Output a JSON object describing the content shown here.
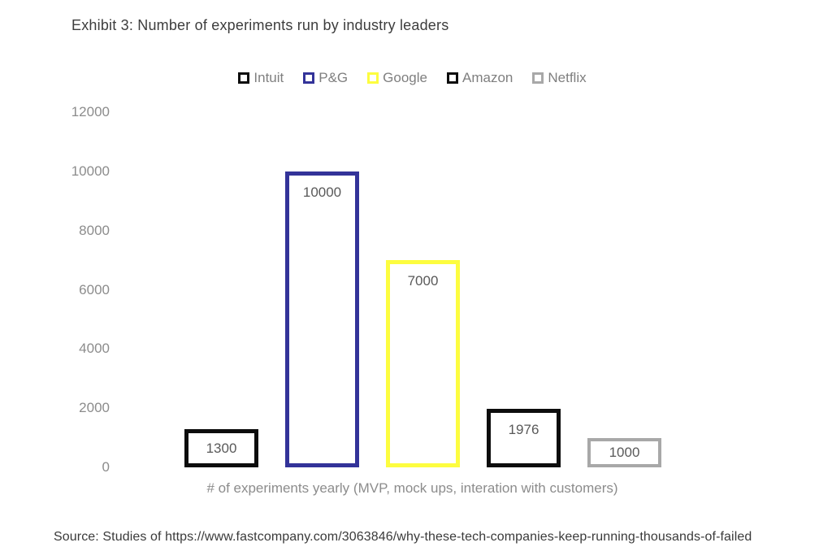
{
  "title": "Exhibit 3: Number of experiments run by industry leaders",
  "legend": {
    "items": [
      {
        "label": "Intuit",
        "color": "#0d0d0d"
      },
      {
        "label": "P&G",
        "color": "#333399"
      },
      {
        "label": "Google",
        "color": "#fdfd3f"
      },
      {
        "label": "Amazon",
        "color": "#0d0d0d"
      },
      {
        "label": "Netflix",
        "color": "#a8a8a8"
      }
    ]
  },
  "chart_data": {
    "type": "bar",
    "categories": [
      "Intuit",
      "P&G",
      "Google",
      "Amazon",
      "Netflix"
    ],
    "values": [
      1300,
      10000,
      7000,
      1976,
      1000
    ],
    "bar_colors": [
      "#0d0d0d",
      "#333399",
      "#fdfd3f",
      "#0d0d0d",
      "#a8a8a8"
    ],
    "bar_border_px": [
      5,
      5,
      5,
      5,
      4
    ],
    "bar_fill": "#ffffff",
    "data_labels": [
      "1300",
      "10000",
      "7000",
      "1976",
      "1000"
    ],
    "title": "Exhibit 3: Number of experiments run by industry leaders",
    "xlabel": "# of experiments yearly (MVP, mock ups, interation with customers)",
    "ylabel": "",
    "ylim": [
      0,
      12000
    ],
    "yticks": [
      "0",
      "2000",
      "4000",
      "6000",
      "8000",
      "10000",
      "12000"
    ],
    "grid": false,
    "legend_position": "top"
  },
  "source": "Source: Studies of https://www.fastcompany.com/3063846/why-these-tech-companies-keep-running-thousands-of-failed"
}
